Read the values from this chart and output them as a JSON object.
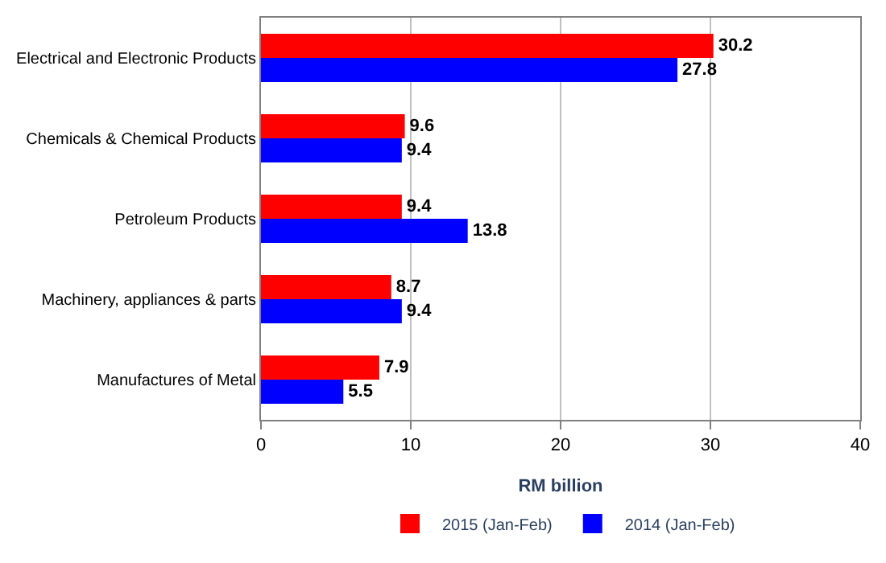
{
  "chart_data": {
    "type": "bar",
    "orientation": "horizontal",
    "xlabel": "RM billion",
    "categories": [
      "Electrical and Electronic Products",
      "Chemicals & Chemical Products",
      "Petroleum Products",
      "Machinery, appliances & parts",
      "Manufactures of Metal"
    ],
    "series": [
      {
        "name": "2015 (Jan-Feb)",
        "color": "#ff0000",
        "values": [
          30.2,
          9.6,
          9.4,
          8.7,
          7.9
        ]
      },
      {
        "name": "2014 (Jan-Feb)",
        "color": "#0000ff",
        "values": [
          27.8,
          9.4,
          13.8,
          9.4,
          5.5
        ]
      }
    ],
    "xlim": [
      0,
      40
    ],
    "xticks": [
      0,
      10,
      20,
      30,
      40
    ],
    "grid": "x",
    "legend": "bottom",
    "data_labels": true
  }
}
